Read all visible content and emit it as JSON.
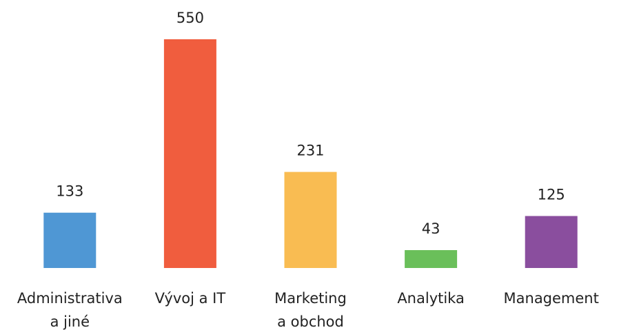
{
  "chart_data": {
    "type": "bar",
    "categories": [
      [
        "Administrativa",
        "a jiné"
      ],
      [
        "Vývoj a IT"
      ],
      [
        "Marketing",
        "a obchod"
      ],
      [
        "Analytika"
      ],
      [
        "Management"
      ]
    ],
    "values": [
      133,
      550,
      231,
      43,
      125
    ],
    "colors": [
      "#4f97d4",
      "#f05d3e",
      "#f9bc52",
      "#6abf5a",
      "#8a4e9e"
    ]
  }
}
